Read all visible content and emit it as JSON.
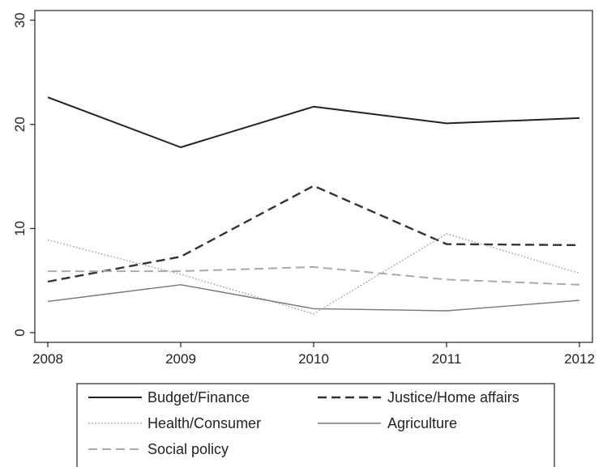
{
  "chart_data": {
    "type": "line",
    "title": "",
    "xlabel": "",
    "ylabel": "",
    "x": [
      2008,
      2009,
      2010,
      2011,
      2012
    ],
    "xticks": [
      "2008",
      "2009",
      "2010",
      "2011",
      "2012"
    ],
    "xlim": [
      2008,
      2012
    ],
    "ylim": [
      0,
      30
    ],
    "yticks": [
      "0",
      "10",
      "20",
      "30"
    ],
    "grid": false,
    "legend_position": "bottom",
    "series": [
      {
        "name": "Budget/Finance",
        "values": [
          22.6,
          17.8,
          21.7,
          20.1,
          20.6
        ],
        "color": "#222222",
        "style": "solid-thick"
      },
      {
        "name": "Justice/Home affairs",
        "values": [
          4.9,
          7.3,
          14.1,
          8.5,
          8.4
        ],
        "color": "#333333",
        "style": "dashed-thick"
      },
      {
        "name": "Health/Consumer",
        "values": [
          8.9,
          5.6,
          1.8,
          9.5,
          5.7
        ],
        "color": "#999999",
        "style": "dotted"
      },
      {
        "name": "Agriculture",
        "values": [
          3.0,
          4.6,
          2.3,
          2.1,
          3.1
        ],
        "color": "#777777",
        "style": "solid-thin"
      },
      {
        "name": "Social policy",
        "values": [
          5.9,
          5.9,
          6.3,
          5.1,
          4.6
        ],
        "color": "#aaaaaa",
        "style": "dashed-light"
      }
    ]
  }
}
